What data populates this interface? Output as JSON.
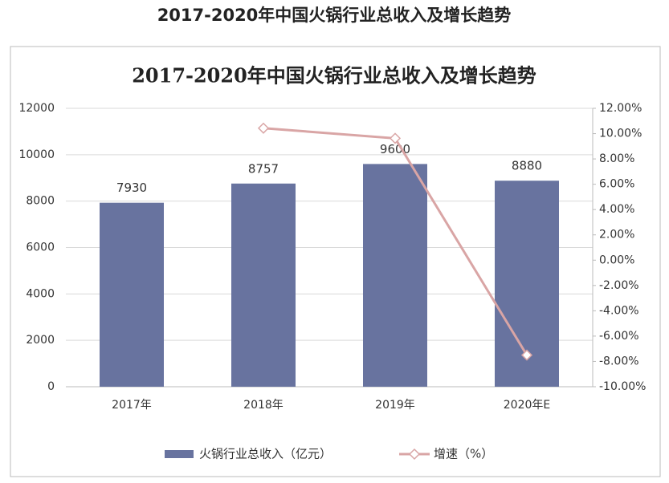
{
  "page_title": "2017-2020年中国火锅行业总收入及增长趋势",
  "chart_data": {
    "type": "bar",
    "title": "2017-2020年中国火锅行业总收入及增长趋势",
    "categories": [
      "2017年",
      "2018年",
      "2019年",
      "2020年E"
    ],
    "series": [
      {
        "name": "火锅行业总收入（亿元）",
        "type": "bar",
        "color": "#68739f",
        "values": [
          7930,
          8757,
          9600,
          8880
        ]
      },
      {
        "name": "增速（%）",
        "type": "line",
        "axis": "y2",
        "color": "#d9a5a5",
        "values": [
          null,
          10.43,
          9.63,
          -7.5
        ]
      }
    ],
    "ylim": [
      0,
      12000
    ],
    "yticks": [
      0,
      2000,
      4000,
      6000,
      8000,
      10000,
      12000
    ],
    "y2lim": [
      -10,
      12
    ],
    "y2ticks": [
      {
        "value": -10,
        "label": "-10.00%"
      },
      {
        "value": -8,
        "label": "-8.00%"
      },
      {
        "value": -6,
        "label": "-6.00%"
      },
      {
        "value": -4,
        "label": "-4.00%"
      },
      {
        "value": -2,
        "label": "-2.00%"
      },
      {
        "value": 0,
        "label": "0.00%"
      },
      {
        "value": 2,
        "label": "2.00%"
      },
      {
        "value": 4,
        "label": "4.00%"
      },
      {
        "value": 6,
        "label": "6.00%"
      },
      {
        "value": 8,
        "label": "8.00%"
      },
      {
        "value": 10,
        "label": "10.00%"
      },
      {
        "value": 12,
        "label": "12.00%"
      }
    ],
    "grid": true,
    "legend": "bottom"
  }
}
